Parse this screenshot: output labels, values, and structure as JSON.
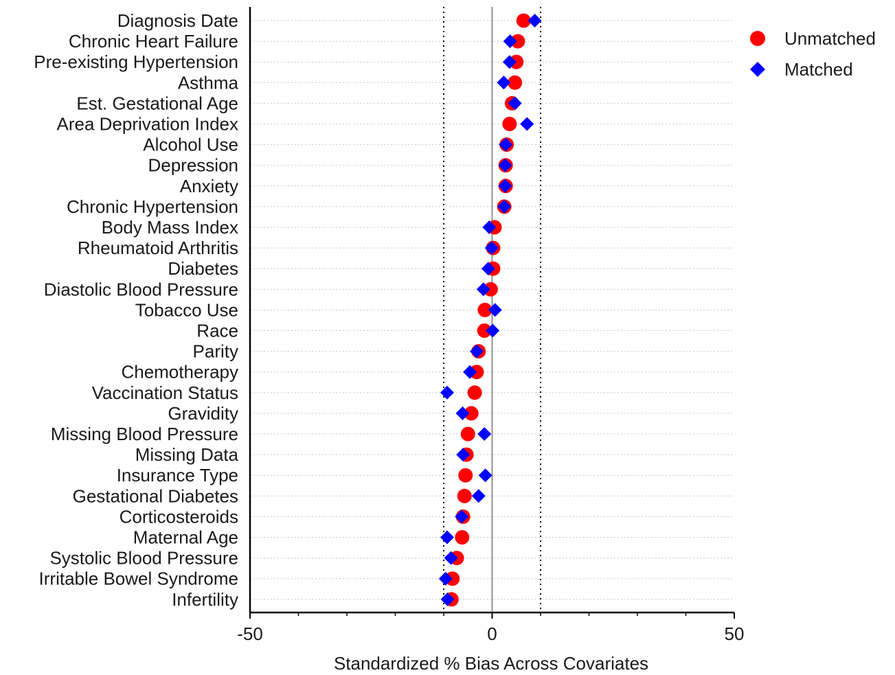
{
  "chart_data": {
    "type": "scatter",
    "orientation": "horizontal-dot-plot",
    "title": "",
    "xlabel": "Standardized % Bias Across Covariates",
    "ylabel": "",
    "xlim": [
      -50,
      50
    ],
    "x_major_ticks": [
      -50,
      0,
      50
    ],
    "x_minor_ticks": [
      -40,
      -30,
      -20,
      -10,
      10,
      20,
      30,
      40
    ],
    "reference_lines": {
      "solid": [
        0
      ],
      "dotted": [
        -10,
        10
      ]
    },
    "grid": "horizontal dotted",
    "legend_position": "top-right",
    "categories": [
      "Diagnosis Date",
      "Chronic Heart Failure",
      "Pre-existing Hypertension",
      "Asthma",
      "Est. Gestational Age",
      "Area Deprivation Index",
      "Alcohol Use",
      "Depression",
      "Anxiety",
      "Chronic Hypertension",
      "Body Mass Index",
      "Rheumatoid Arthritis",
      "Diabetes",
      "Diastolic Blood Pressure",
      "Tobacco Use",
      "Race",
      "Parity",
      "Chemotherapy",
      "Vaccination Status",
      "Gravidity",
      "Missing Blood Pressure",
      "Missing Data",
      "Insurance Type",
      "Gestational Diabetes",
      "Corticosteroids",
      "Maternal Age",
      "Systolic Blood Pressure",
      "Irritable Bowel Syndrome",
      "Infertility"
    ],
    "series": [
      {
        "name": "Unmatched",
        "marker": "circle",
        "color": "#ff0000",
        "values": [
          6.5,
          5.3,
          5.0,
          4.7,
          4.1,
          3.6,
          3.0,
          2.8,
          2.8,
          2.5,
          0.5,
          0.2,
          0.2,
          -0.3,
          -1.5,
          -1.6,
          -2.8,
          -3.2,
          -3.6,
          -4.3,
          -5.0,
          -5.3,
          -5.5,
          -5.7,
          -6.0,
          -6.2,
          -7.3,
          -8.2,
          -8.4
        ]
      },
      {
        "name": "Matched",
        "marker": "diamond",
        "color": "#0000ff",
        "values": [
          8.8,
          3.7,
          3.6,
          2.4,
          4.7,
          7.2,
          2.8,
          2.7,
          2.7,
          2.5,
          -0.6,
          -0.1,
          -0.8,
          -1.8,
          0.6,
          0.1,
          -3.2,
          -4.6,
          -9.3,
          -6.1,
          -1.6,
          -6.0,
          -1.4,
          -2.8,
          -6.3,
          -9.3,
          -8.5,
          -9.6,
          -9.2
        ]
      }
    ]
  }
}
